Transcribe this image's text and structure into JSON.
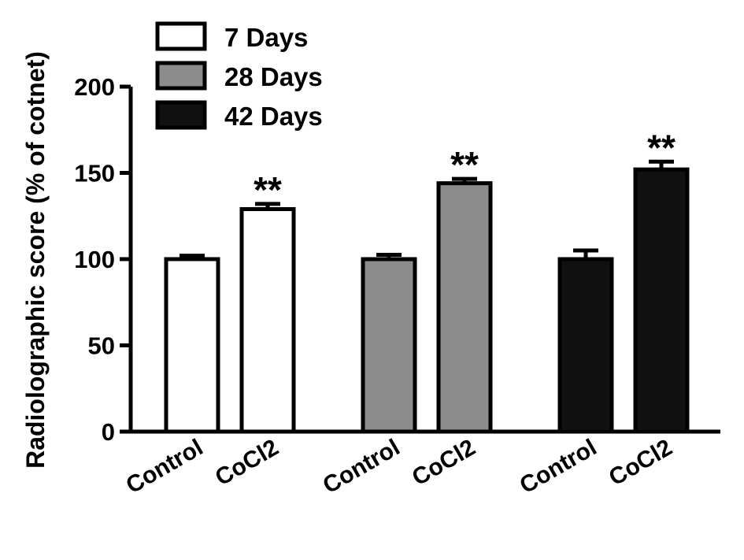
{
  "chart_data": {
    "type": "bar",
    "title": "",
    "xlabel": "",
    "ylabel": "Radiolographic score (% of cotnet)",
    "ylim": [
      0,
      200
    ],
    "yticks": [
      0,
      50,
      100,
      150,
      200
    ],
    "grid": false,
    "legend_position": "top-left",
    "groups": [
      {
        "name": "7 Days",
        "color": "#ffffff",
        "bars": [
          {
            "label": "Control",
            "value": 100,
            "error": 2,
            "annotation": ""
          },
          {
            "label": "CoCl2",
            "value": 129,
            "error": 3,
            "annotation": "**"
          }
        ]
      },
      {
        "name": "28 Days",
        "color": "#8c8c8c",
        "bars": [
          {
            "label": "Control",
            "value": 100,
            "error": 2.5,
            "annotation": ""
          },
          {
            "label": "CoCl2",
            "value": 144,
            "error": 2.5,
            "annotation": "**"
          }
        ]
      },
      {
        "name": "42 Days",
        "color": "#111111",
        "bars": [
          {
            "label": "Control",
            "value": 100,
            "error": 5,
            "annotation": ""
          },
          {
            "label": "CoCl2",
            "value": 152,
            "error": 4.5,
            "annotation": "**"
          }
        ]
      }
    ]
  }
}
